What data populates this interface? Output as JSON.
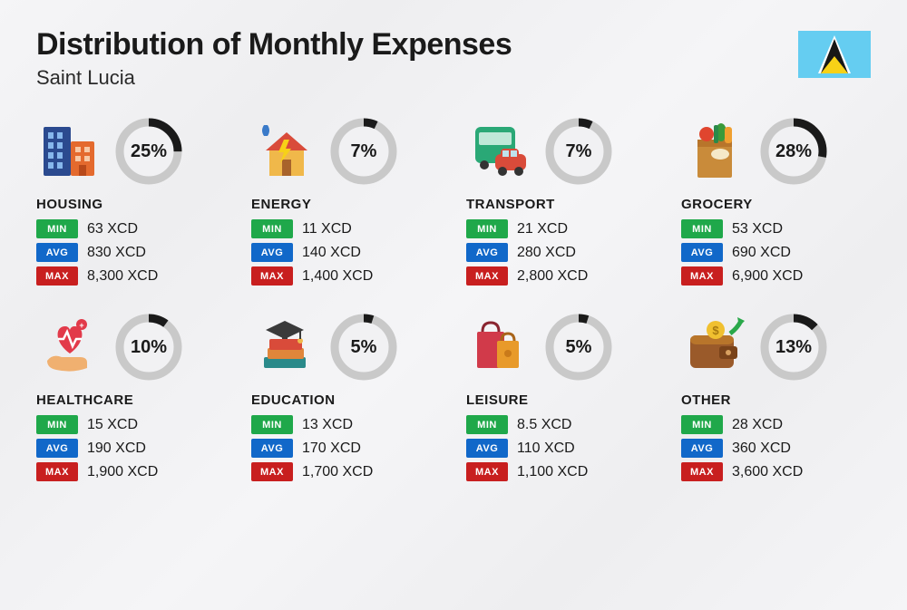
{
  "title": "Distribution of Monthly Expenses",
  "subtitle": "Saint Lucia",
  "currency": "XCD",
  "ring": {
    "radius": 32,
    "stroke_width": 9,
    "track_color": "#c9c9c9",
    "progress_color": "#1a1a1a",
    "bg_fill": "#f1f1f3"
  },
  "badges": {
    "min_label": "MIN",
    "avg_label": "AVG",
    "max_label": "MAX",
    "min_color": "#1fa84a",
    "avg_color": "#1168c9",
    "max_color": "#c81f1f"
  },
  "flag": {
    "bg": "#65cdf1",
    "width": 80,
    "height": 52
  },
  "categories": [
    {
      "key": "housing",
      "name": "HOUSING",
      "percent": 25,
      "min": "63",
      "avg": "830",
      "max": "8,300",
      "icon": "buildings"
    },
    {
      "key": "energy",
      "name": "ENERGY",
      "percent": 7,
      "min": "11",
      "avg": "140",
      "max": "1,400",
      "icon": "house-bolt"
    },
    {
      "key": "transport",
      "name": "TRANSPORT",
      "percent": 7,
      "min": "21",
      "avg": "280",
      "max": "2,800",
      "icon": "bus-car"
    },
    {
      "key": "grocery",
      "name": "GROCERY",
      "percent": 28,
      "min": "53",
      "avg": "690",
      "max": "6,900",
      "icon": "grocery-bag"
    },
    {
      "key": "healthcare",
      "name": "HEALTHCARE",
      "percent": 10,
      "min": "15",
      "avg": "190",
      "max": "1,900",
      "icon": "heart-hand"
    },
    {
      "key": "education",
      "name": "EDUCATION",
      "percent": 5,
      "min": "13",
      "avg": "170",
      "max": "1,700",
      "icon": "grad-books"
    },
    {
      "key": "leisure",
      "name": "LEISURE",
      "percent": 5,
      "min": "8.5",
      "avg": "110",
      "max": "1,100",
      "icon": "shopping-bags"
    },
    {
      "key": "other",
      "name": "OTHER",
      "percent": 13,
      "min": "28",
      "avg": "360",
      "max": "3,600",
      "icon": "wallet-arrow"
    }
  ]
}
